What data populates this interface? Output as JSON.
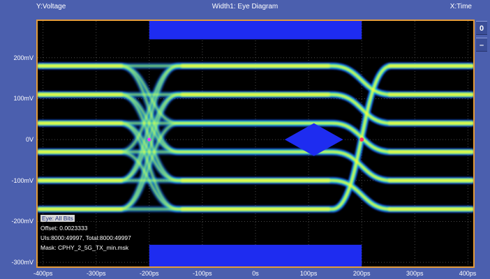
{
  "header": {
    "y_axis_label": "Y:Voltage",
    "title": "Width1: Eye Diagram",
    "x_axis_label": "X:Time"
  },
  "side_buttons": [
    {
      "label": "0",
      "icon": "zero-icon"
    },
    {
      "label": "–",
      "icon": "minus-icon"
    }
  ],
  "info": {
    "eye": "Eye: All Bits",
    "offset": "Offset: 0.0023333",
    "uis": "UIs:8000:49997, Total:8000:49997",
    "mask": "Mask: CPHY_2_5G_TX_min.msk"
  },
  "chart_data": {
    "type": "heatmap",
    "title": "Width1: Eye Diagram",
    "xlabel": "X:Time",
    "ylabel": "Y:Voltage",
    "x_ticks": [
      {
        "value": -400,
        "label": "-400ps"
      },
      {
        "value": -300,
        "label": "-300ps"
      },
      {
        "value": -200,
        "label": "-200ps"
      },
      {
        "value": -100,
        "label": "-100ps"
      },
      {
        "value": 0,
        "label": "0s"
      },
      {
        "value": 100,
        "label": "100ps"
      },
      {
        "value": 200,
        "label": "200ps"
      },
      {
        "value": 300,
        "label": "300ps"
      },
      {
        "value": 400,
        "label": "400ps"
      }
    ],
    "y_ticks": [
      {
        "value": 200,
        "label": "200mV"
      },
      {
        "value": 100,
        "label": "100mV"
      },
      {
        "value": 0,
        "label": "0V"
      },
      {
        "value": -100,
        "label": "-100mV"
      },
      {
        "value": -200,
        "label": "-200mV"
      },
      {
        "value": -300,
        "label": "-300mV"
      }
    ],
    "xlim": [
      -410,
      410
    ],
    "ylim": [
      -310,
      290
    ],
    "grid": true,
    "colors": {
      "background": "#000000",
      "mask": "#1e2cf0",
      "density_low": "#1f5cff",
      "density_mid": "#21e6c8",
      "density_high": "#ffff33",
      "plot_border": "#e39b3a",
      "panel": "#4b5fae"
    },
    "mask": {
      "top_bar": {
        "x": [
          -200,
          200
        ],
        "y": [
          245,
          290
        ]
      },
      "bottom_bar": {
        "x": [
          -200,
          200
        ],
        "y": [
          -310,
          -257
        ]
      },
      "center_diamond": {
        "x": [
          55,
          165
        ],
        "center_y": 0,
        "half_height": 40
      }
    },
    "levels_mV": [
      180,
      110,
      40,
      -30,
      -100,
      -170
    ],
    "crossings_ps": [
      -200,
      200
    ]
  }
}
